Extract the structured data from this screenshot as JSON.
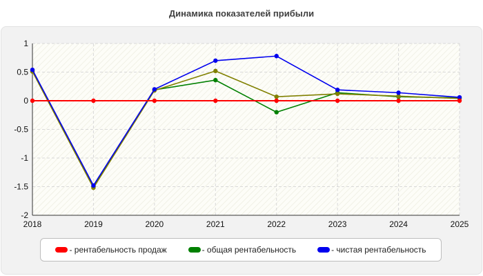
{
  "chart_data": {
    "type": "line",
    "title": "Динамика показателей прибыли",
    "x": [
      "2018",
      "2019",
      "2020",
      "2021",
      "2022",
      "2023",
      "2024",
      "2025"
    ],
    "ylim": [
      -2,
      1
    ],
    "yticks": [
      "1",
      "0.5",
      "0",
      "-0.5",
      "-1",
      "-1.5",
      "-2"
    ],
    "ytick_values": [
      1,
      0.5,
      0,
      -0.5,
      -1,
      -1.5,
      -2
    ],
    "grid": true,
    "legend_position": "bottom",
    "series": [
      {
        "name": "- рентабельность продаж",
        "color": "#ff0000",
        "values": [
          0,
          0,
          0,
          0,
          0,
          0,
          0,
          0
        ]
      },
      {
        "name": "- общая рентабельность",
        "color": "#008000",
        "values": [
          0.52,
          -1.5,
          0.19,
          0.36,
          -0.2,
          0.14,
          0.07,
          0.05
        ]
      },
      {
        "name": "- чистая рентабельность",
        "color": "#0000ee",
        "values": [
          0.54,
          -1.48,
          0.2,
          0.7,
          0.78,
          0.19,
          0.14,
          0.06
        ]
      },
      {
        "name": "",
        "color": "#808000",
        "values": [
          0.51,
          -1.52,
          0.18,
          0.52,
          0.07,
          0.12,
          0.08,
          0.04
        ]
      }
    ]
  }
}
